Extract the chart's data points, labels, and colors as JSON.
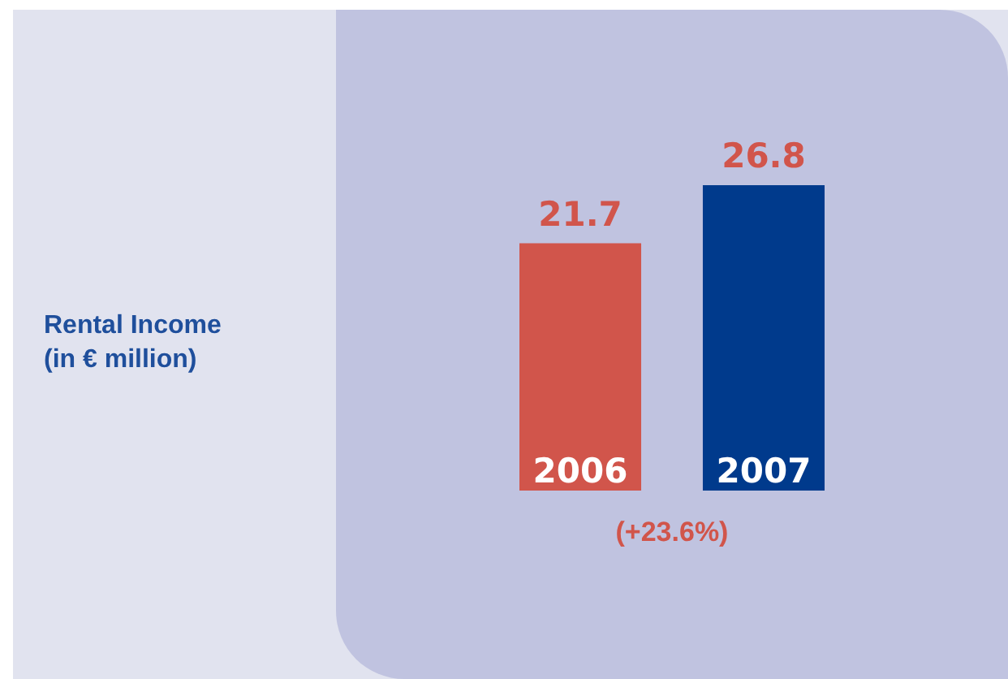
{
  "chart_data": {
    "type": "bar",
    "title": "Rental Income\n(in € million)",
    "categories": [
      "2006",
      "2007"
    ],
    "values": [
      21.7,
      26.8
    ],
    "colors": [
      "#d1554b",
      "#003a8c"
    ],
    "data_labels": true,
    "annotations": [
      "(+23.6%)"
    ]
  }
}
